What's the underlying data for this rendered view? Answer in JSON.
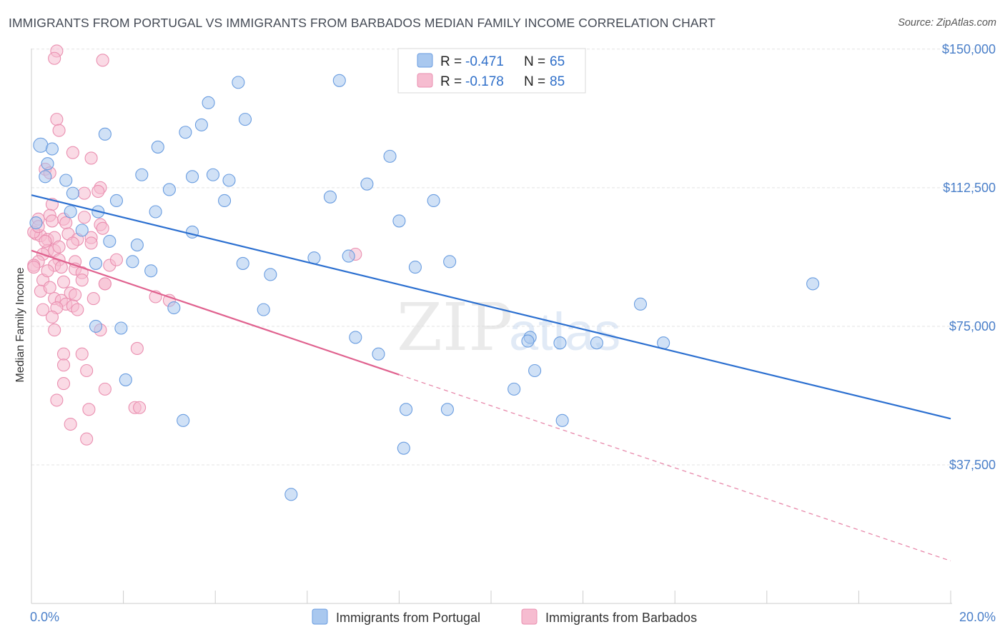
{
  "title": "IMMIGRANTS FROM PORTUGAL VS IMMIGRANTS FROM BARBADOS MEDIAN FAMILY INCOME CORRELATION CHART",
  "source": "Source: ZipAtlas.com",
  "watermark": {
    "zip": "ZIP",
    "atlas": "atlas"
  },
  "colors": {
    "portugal_fill": "#a9c8ef",
    "portugal_stroke": "#6a9de0",
    "portugal_line": "#2b6fd0",
    "barbados_fill": "#f6bcd0",
    "barbados_stroke": "#ea8fb0",
    "barbados_line": "#e0628f",
    "axis_text": "#4a7fc9",
    "grid": "#e3e3e3"
  },
  "legend_top": {
    "rows": [
      {
        "r_label": "R = ",
        "r_value": "-0.471",
        "n_label": "N = ",
        "n_value": "65"
      },
      {
        "r_label": "R = ",
        "r_value": "-0.178",
        "n_label": "N = ",
        "n_value": "85"
      }
    ]
  },
  "chart_data": {
    "type": "scatter",
    "title": "IMMIGRANTS FROM PORTUGAL VS IMMIGRANTS FROM BARBADOS MEDIAN FAMILY INCOME CORRELATION CHART",
    "xlabel": "",
    "ylabel": "Median Family Income",
    "xlim": [
      0,
      20
    ],
    "ylim": [
      0,
      157500
    ],
    "x_tick_labels": [
      "0.0%",
      "20.0%"
    ],
    "y_ticks": [
      37500,
      75000,
      112500,
      150000
    ],
    "y_tick_labels": [
      "$37,500",
      "$75,000",
      "$112,500",
      "$150,000"
    ],
    "grid": true,
    "legend_position": "bottom",
    "series": [
      {
        "name": "Immigrants from Portugal",
        "R": -0.471,
        "N": 65,
        "trend": {
          "x": [
            0,
            20
          ],
          "y": [
            110500,
            50000
          ]
        },
        "points": [
          [
            0.2,
            124000
          ],
          [
            0.45,
            123000
          ],
          [
            0.35,
            119000
          ],
          [
            0.3,
            115500
          ],
          [
            0.75,
            114500
          ],
          [
            1.6,
            127000
          ],
          [
            0.9,
            111000
          ],
          [
            1.85,
            109000
          ],
          [
            1.45,
            106000
          ],
          [
            0.85,
            106000
          ],
          [
            0.1,
            103000
          ],
          [
            1.1,
            101000
          ],
          [
            1.7,
            98000
          ],
          [
            2.3,
            97000
          ],
          [
            1.4,
            92000
          ],
          [
            2.2,
            92500
          ],
          [
            2.6,
            90000
          ],
          [
            2.7,
            106000
          ],
          [
            2.4,
            116000
          ],
          [
            3.0,
            112000
          ],
          [
            2.75,
            123500
          ],
          [
            3.35,
            127500
          ],
          [
            3.7,
            129500
          ],
          [
            3.85,
            135500
          ],
          [
            3.5,
            115500
          ],
          [
            3.95,
            116000
          ],
          [
            4.3,
            114500
          ],
          [
            4.2,
            109000
          ],
          [
            3.5,
            100500
          ],
          [
            4.5,
            141000
          ],
          [
            4.65,
            131000
          ],
          [
            4.6,
            92000
          ],
          [
            5.2,
            89000
          ],
          [
            5.05,
            79500
          ],
          [
            3.1,
            80000
          ],
          [
            1.4,
            75000
          ],
          [
            1.95,
            74500
          ],
          [
            2.05,
            60500
          ],
          [
            3.3,
            49500
          ],
          [
            5.65,
            29500
          ],
          [
            6.15,
            93500
          ],
          [
            6.5,
            110000
          ],
          [
            6.7,
            141500
          ],
          [
            6.9,
            94000
          ],
          [
            7.05,
            72000
          ],
          [
            7.3,
            113500
          ],
          [
            7.55,
            67500
          ],
          [
            7.8,
            121000
          ],
          [
            8.0,
            103500
          ],
          [
            8.15,
            52500
          ],
          [
            8.35,
            91000
          ],
          [
            8.75,
            109000
          ],
          [
            8.1,
            42000
          ],
          [
            9.1,
            92500
          ],
          [
            9.05,
            52500
          ],
          [
            10.5,
            58000
          ],
          [
            10.85,
            72000
          ],
          [
            10.95,
            63000
          ],
          [
            11.5,
            70500
          ],
          [
            11.55,
            49500
          ],
          [
            12.3,
            70500
          ],
          [
            13.25,
            81000
          ],
          [
            13.75,
            70500
          ],
          [
            17.0,
            86500
          ],
          [
            10.8,
            71000
          ]
        ]
      },
      {
        "name": "Immigrants from Barbados",
        "R": -0.178,
        "N": 85,
        "trend": {
          "x": [
            0,
            20
          ],
          "y": [
            95500,
            11500
          ]
        },
        "trend_solid_until_x": 8.0,
        "points": [
          [
            0.55,
            149500
          ],
          [
            0.5,
            147500
          ],
          [
            1.55,
            147000
          ],
          [
            0.55,
            131000
          ],
          [
            0.6,
            128000
          ],
          [
            0.9,
            122000
          ],
          [
            1.3,
            120500
          ],
          [
            0.3,
            117500
          ],
          [
            0.4,
            116500
          ],
          [
            1.5,
            112500
          ],
          [
            1.45,
            111500
          ],
          [
            1.15,
            111000
          ],
          [
            0.45,
            108000
          ],
          [
            0.4,
            105000
          ],
          [
            0.7,
            104000
          ],
          [
            1.15,
            104500
          ],
          [
            0.15,
            104000
          ],
          [
            0.45,
            103500
          ],
          [
            1.5,
            102500
          ],
          [
            0.75,
            103000
          ],
          [
            0.1,
            100000
          ],
          [
            0.2,
            99500
          ],
          [
            0.35,
            98500
          ],
          [
            0.5,
            99000
          ],
          [
            0.8,
            100000
          ],
          [
            1.3,
            99000
          ],
          [
            1.0,
            98500
          ],
          [
            0.9,
            97500
          ],
          [
            0.35,
            95500
          ],
          [
            0.5,
            95500
          ],
          [
            0.25,
            94500
          ],
          [
            0.15,
            92500
          ],
          [
            0.05,
            91500
          ],
          [
            0.05,
            91000
          ],
          [
            0.6,
            93000
          ],
          [
            0.95,
            92500
          ],
          [
            0.5,
            91500
          ],
          [
            1.7,
            91500
          ],
          [
            1.85,
            93000
          ],
          [
            0.65,
            91000
          ],
          [
            0.95,
            90500
          ],
          [
            1.1,
            89500
          ],
          [
            0.25,
            87500
          ],
          [
            0.7,
            87000
          ],
          [
            1.6,
            86500
          ],
          [
            0.2,
            84500
          ],
          [
            0.85,
            84000
          ],
          [
            0.95,
            83500
          ],
          [
            0.5,
            82500
          ],
          [
            0.65,
            82000
          ],
          [
            1.35,
            82500
          ],
          [
            0.75,
            81000
          ],
          [
            0.9,
            80500
          ],
          [
            0.55,
            80000
          ],
          [
            1.0,
            79500
          ],
          [
            0.25,
            79500
          ],
          [
            2.7,
            83000
          ],
          [
            3.0,
            82000
          ],
          [
            0.45,
            77500
          ],
          [
            1.5,
            74000
          ],
          [
            0.5,
            74000
          ],
          [
            2.3,
            69000
          ],
          [
            0.7,
            67500
          ],
          [
            1.1,
            67500
          ],
          [
            0.7,
            64500
          ],
          [
            1.2,
            63000
          ],
          [
            0.7,
            59500
          ],
          [
            1.6,
            58000
          ],
          [
            0.55,
            55000
          ],
          [
            1.25,
            52500
          ],
          [
            2.25,
            53000
          ],
          [
            2.35,
            53000
          ],
          [
            0.85,
            48500
          ],
          [
            1.2,
            44500
          ],
          [
            1.6,
            86500
          ],
          [
            7.05,
            94500
          ],
          [
            0.05,
            100500
          ],
          [
            0.15,
            102000
          ],
          [
            1.3,
            97500
          ],
          [
            0.6,
            96500
          ],
          [
            0.3,
            98000
          ],
          [
            0.35,
            90000
          ],
          [
            1.1,
            87500
          ],
          [
            0.4,
            85500
          ],
          [
            1.55,
            101500
          ]
        ]
      }
    ]
  }
}
